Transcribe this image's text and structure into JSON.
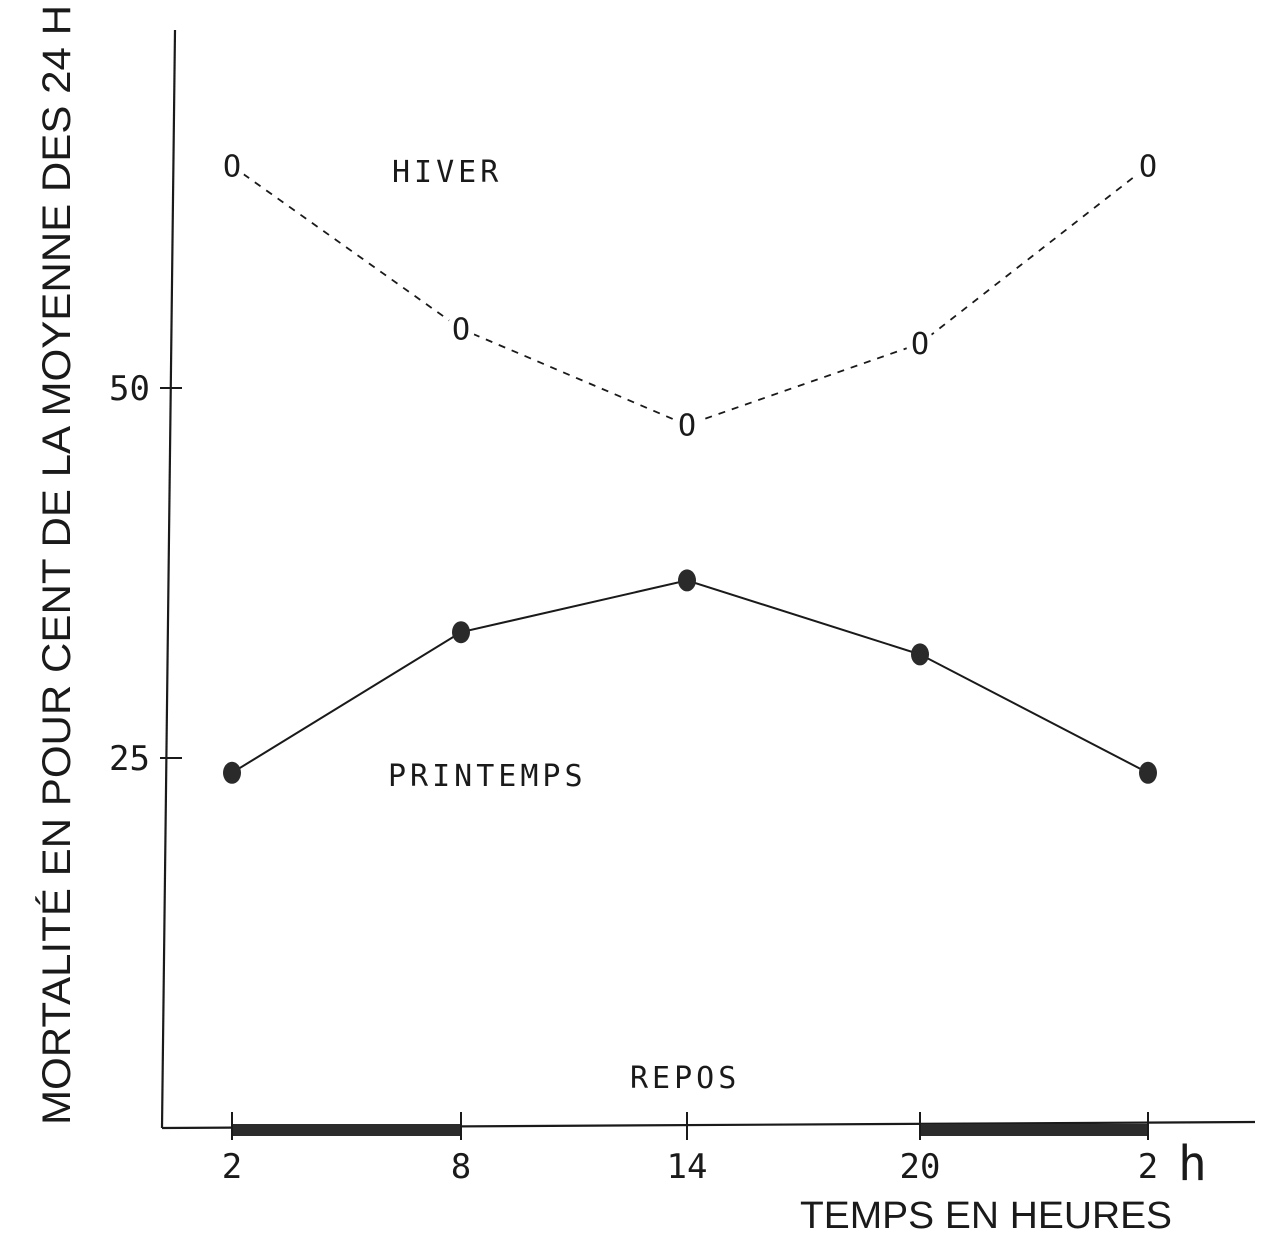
{
  "chart_data": {
    "type": "line",
    "ylabel": "MORTALITÉ EN POUR CENT DE LA MOYENNE DES 24 H",
    "xlabel": "TEMPS EN HEURES",
    "x_unit": "h",
    "x_ticks": [
      "2",
      "8",
      "14",
      "20",
      "2"
    ],
    "y_ticks": [
      "25",
      "50"
    ],
    "ylim": [
      0,
      76
    ],
    "series": [
      {
        "name": "HIVER",
        "style": "dashed",
        "marker": "circle-open",
        "values": [
          65,
          54,
          47.5,
          53,
          65
        ]
      },
      {
        "name": "PRINTEMPS",
        "style": "solid",
        "marker": "circle-filled",
        "values": [
          24,
          33.5,
          37,
          32,
          24
        ]
      }
    ],
    "repos_label": "REPOS",
    "repos_periods": [
      [
        0,
        1
      ],
      [
        3,
        4
      ]
    ],
    "grid": false
  }
}
